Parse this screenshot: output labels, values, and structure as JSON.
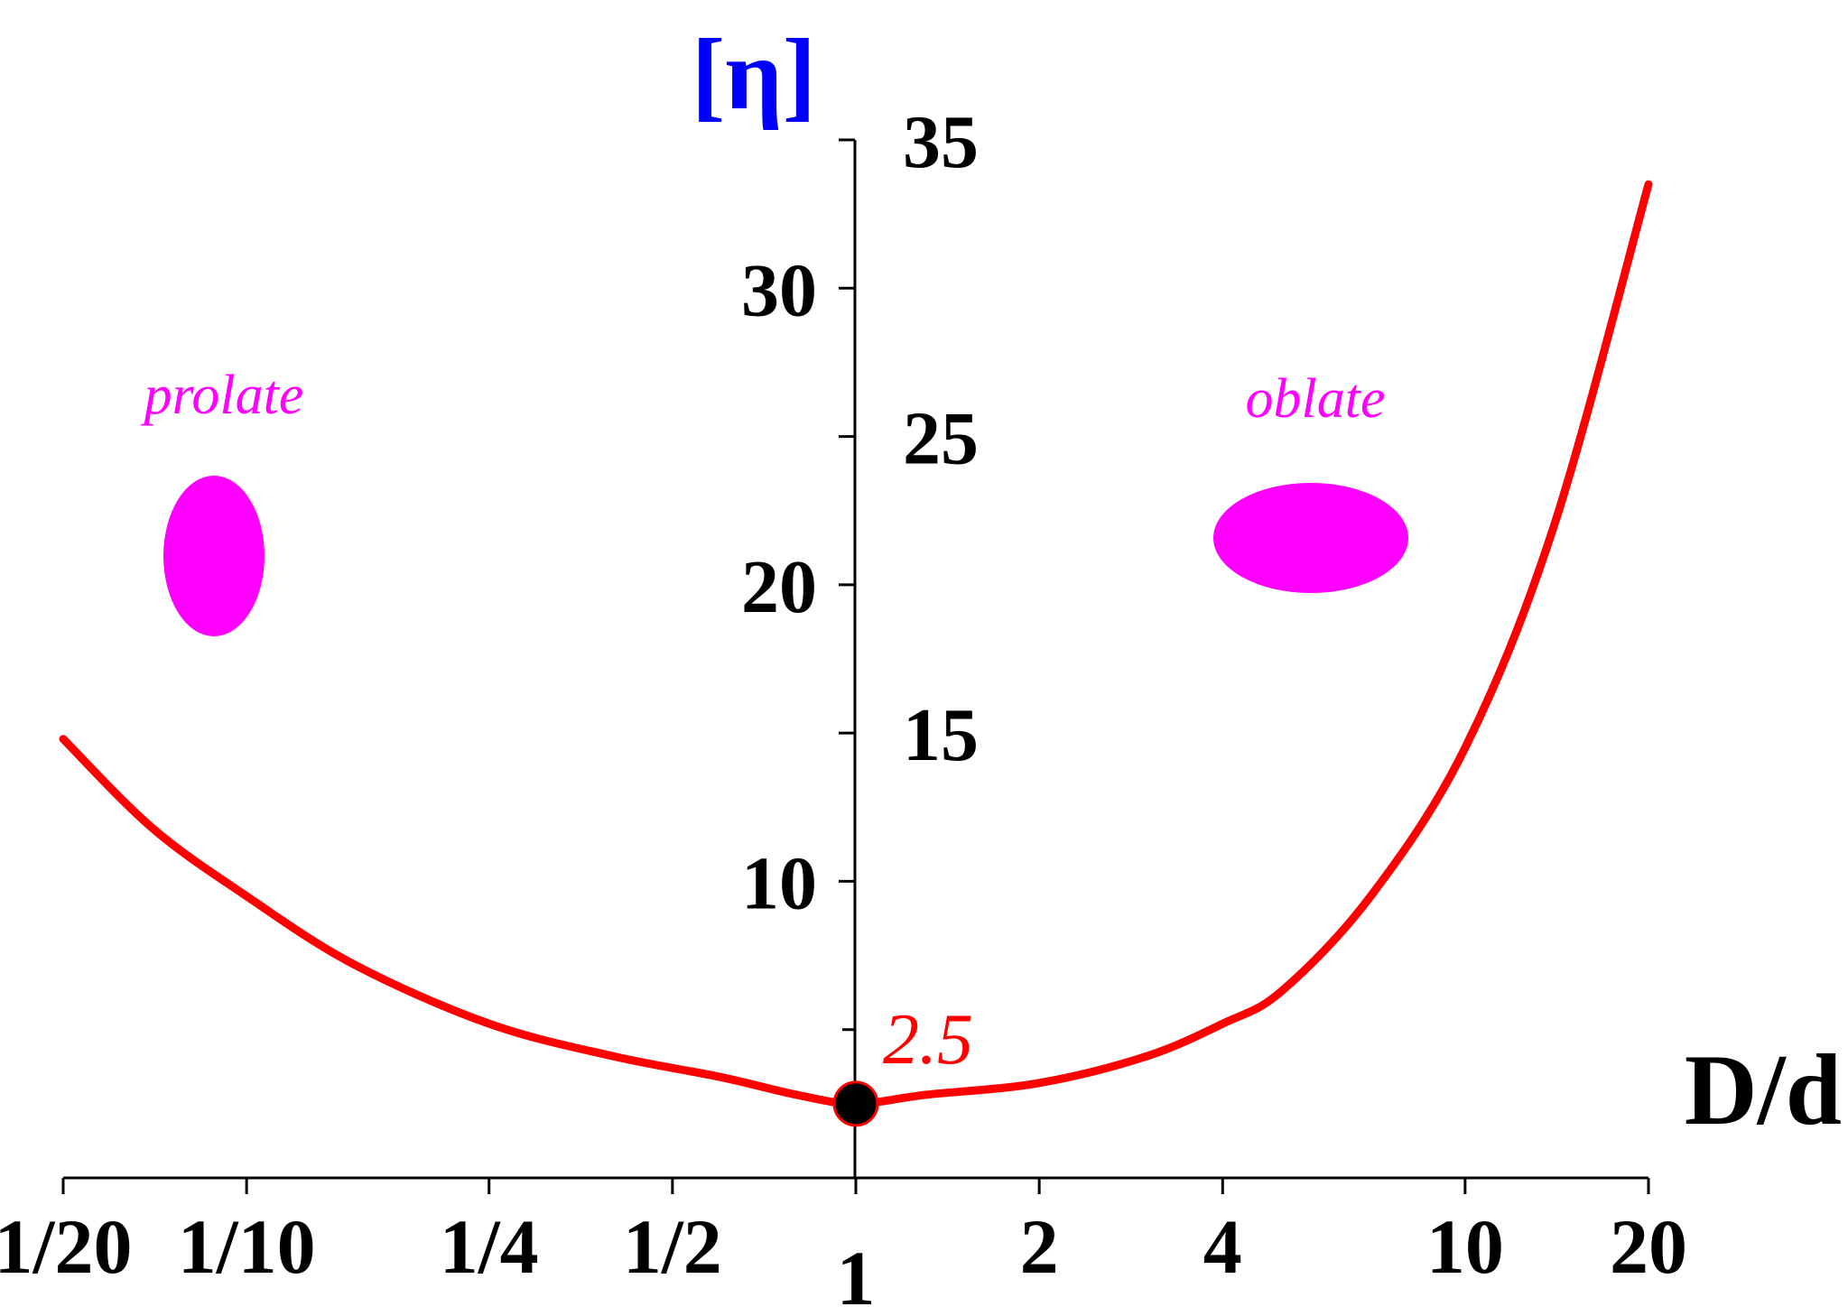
{
  "chart_data": {
    "type": "line",
    "title": "",
    "xlabel": "D/d",
    "ylabel": "[η]",
    "x_scale": "log",
    "x_ticks": [
      {
        "value": 0.05,
        "label": "1/20"
      },
      {
        "value": 0.1,
        "label": "1/10"
      },
      {
        "value": 0.25,
        "label": "1/4"
      },
      {
        "value": 0.5,
        "label": "1/2"
      },
      {
        "value": 1,
        "label": "1"
      },
      {
        "value": 2,
        "label": "2"
      },
      {
        "value": 4,
        "label": "4"
      },
      {
        "value": 10,
        "label": "10"
      },
      {
        "value": 20,
        "label": "20"
      }
    ],
    "xlim": [
      0.05,
      20
    ],
    "ylim": [
      0,
      35
    ],
    "y_ticks": [
      {
        "value": 10,
        "label": "10"
      },
      {
        "value": 15,
        "label": "15"
      },
      {
        "value": 20,
        "label": "20"
      },
      {
        "value": 25,
        "label": "25"
      },
      {
        "value": 30,
        "label": "30"
      },
      {
        "value": 35,
        "label": "35"
      }
    ],
    "y_minor_ticks": [
      5
    ],
    "grid": false,
    "series": [
      {
        "color": "#ff0000",
        "x": [
          0.05,
          0.07,
          0.1,
          0.15,
          0.25,
          0.4,
          0.6,
          0.8,
          1,
          1.3,
          2,
          3,
          4,
          5,
          7,
          10,
          14,
          20
        ],
        "y": [
          14.8,
          11.8,
          9.5,
          7.2,
          5.2,
          4.1,
          3.4,
          2.8,
          2.5,
          2.8,
          3.2,
          4.1,
          5.2,
          6.3,
          9.5,
          14.5,
          22.0,
          33.5
        ]
      }
    ],
    "highlight_point": {
      "x": 1,
      "y": 2.5,
      "label": "2.5",
      "label_color": "#ff0000",
      "marker_color": "#000000"
    },
    "annotations": [
      {
        "text": "prolate",
        "color": "#ff00ff",
        "shape": "vertical-ellipse",
        "region": "left"
      },
      {
        "text": "oblate",
        "color": "#ff00ff",
        "shape": "horizontal-ellipse",
        "region": "right"
      }
    ],
    "x_label_color_special": {
      "value": 1,
      "color": "#0000ff"
    },
    "ylabel_color": "#0000ff",
    "xlabel_color": "#000000"
  }
}
